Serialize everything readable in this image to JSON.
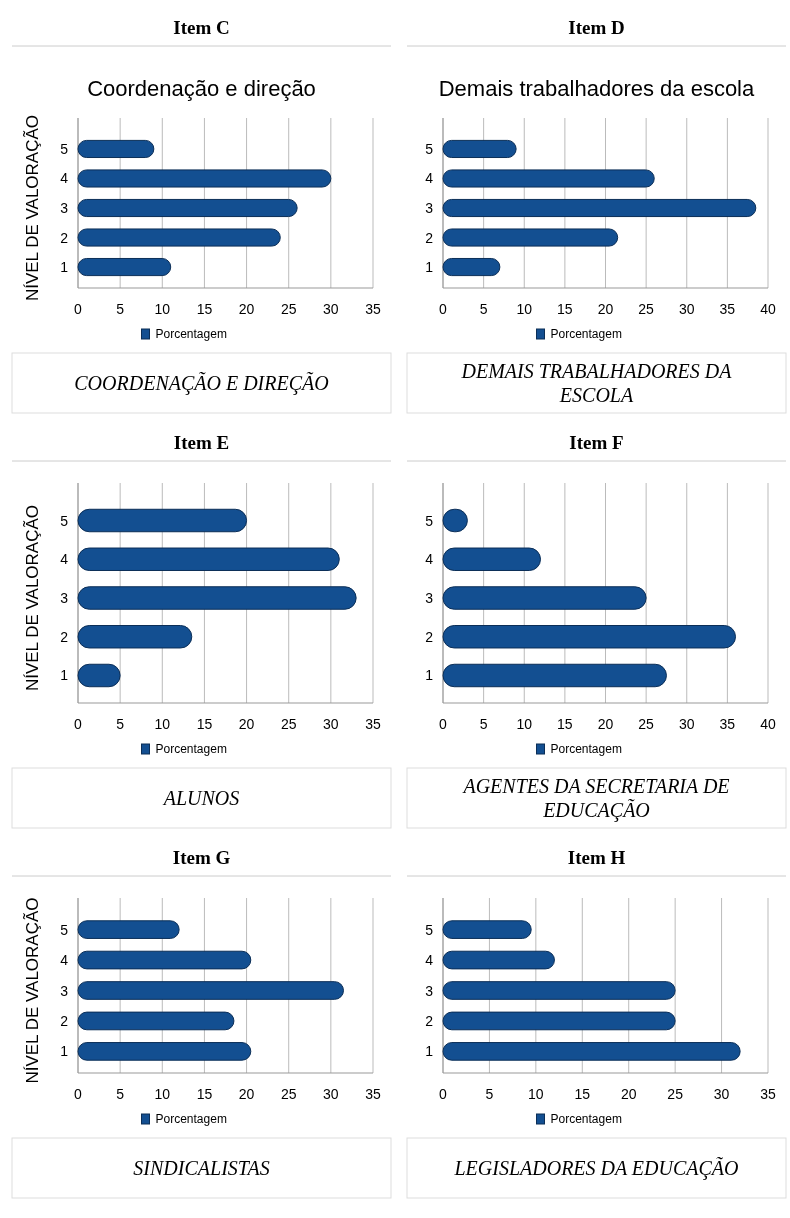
{
  "chart_data": [
    {
      "type": "bar",
      "orientation": "horizontal",
      "title": "Item C",
      "subtitle": "Coordenação e direção",
      "ylabel": "NÍVEL DE VALORAÇÃO",
      "categories": [
        "5",
        "4",
        "3",
        "2",
        "1"
      ],
      "series": [
        {
          "name": "Porcentagem",
          "color": "#134f91",
          "values": [
            9,
            30,
            26,
            24,
            11
          ]
        }
      ],
      "xlim": [
        0,
        35
      ],
      "xticks": [
        0,
        5,
        10,
        15,
        20,
        25,
        30,
        35
      ],
      "grid": "x",
      "legend": "bottom",
      "annotations": [
        "COORDENAÇÃO E DIREÇÃO"
      ]
    },
    {
      "type": "bar",
      "orientation": "horizontal",
      "title": "Item D",
      "subtitle": "Demais trabalhadores da escola",
      "categories": [
        "5",
        "4",
        "3",
        "2",
        "1"
      ],
      "series": [
        {
          "name": "Porcentagem",
          "color": "#134f91",
          "values": [
            9,
            26,
            38.5,
            21.5,
            7
          ]
        }
      ],
      "xlim": [
        0,
        40
      ],
      "xticks": [
        0,
        5,
        10,
        15,
        20,
        25,
        30,
        35,
        40
      ],
      "grid": "x",
      "legend": "bottom",
      "annotations": [
        "DEMAIS TRABALHADORES DA ESCOLA"
      ]
    },
    {
      "type": "bar",
      "orientation": "horizontal",
      "title": "Item E",
      "ylabel": "NÍVEL DE VALORAÇÃO",
      "categories": [
        "5",
        "4",
        "3",
        "2",
        "1"
      ],
      "series": [
        {
          "name": "Porcentagem",
          "color": "#134f91",
          "values": [
            20,
            31,
            33,
            13.5,
            5
          ]
        }
      ],
      "xlim": [
        0,
        35
      ],
      "xticks": [
        0,
        5,
        10,
        15,
        20,
        25,
        30,
        35
      ],
      "grid": "x",
      "legend": "bottom",
      "annotations": [
        "ALUNOS"
      ]
    },
    {
      "type": "bar",
      "orientation": "horizontal",
      "title": "Item F",
      "categories": [
        "5",
        "4",
        "3",
        "2",
        "1"
      ],
      "series": [
        {
          "name": "Porcentagem",
          "color": "#134f91",
          "values": [
            3,
            12,
            25,
            36,
            27.5
          ]
        }
      ],
      "xlim": [
        0,
        40
      ],
      "xticks": [
        0,
        5,
        10,
        15,
        20,
        25,
        30,
        35,
        40
      ],
      "grid": "x",
      "legend": "bottom",
      "annotations": [
        "AGENTES DA SECRETARIA DE EDUCAÇÃO"
      ]
    },
    {
      "type": "bar",
      "orientation": "horizontal",
      "title": "Item G",
      "ylabel": "NÍVEL DE VALORAÇÃO",
      "categories": [
        "5",
        "4",
        "3",
        "2",
        "1"
      ],
      "series": [
        {
          "name": "Porcentagem",
          "color": "#134f91",
          "values": [
            12,
            20.5,
            31.5,
            18.5,
            20.5
          ]
        }
      ],
      "xlim": [
        0,
        35
      ],
      "xticks": [
        0,
        5,
        10,
        15,
        20,
        25,
        30,
        35
      ],
      "grid": "x",
      "legend": "bottom",
      "annotations": [
        "SINDICALISTAS"
      ]
    },
    {
      "type": "bar",
      "orientation": "horizontal",
      "title": "Item H",
      "categories": [
        "5",
        "4",
        "3",
        "2",
        "1"
      ],
      "series": [
        {
          "name": "Porcentagem",
          "color": "#134f91",
          "values": [
            9.5,
            12,
            25,
            25,
            32
          ]
        }
      ],
      "xlim": [
        0,
        35
      ],
      "xticks": [
        0,
        5,
        10,
        15,
        20,
        25,
        30,
        35
      ],
      "grid": "x",
      "legend": "bottom",
      "annotations": [
        "LEGISLADORES DA EDUCAÇÃO"
      ]
    }
  ]
}
